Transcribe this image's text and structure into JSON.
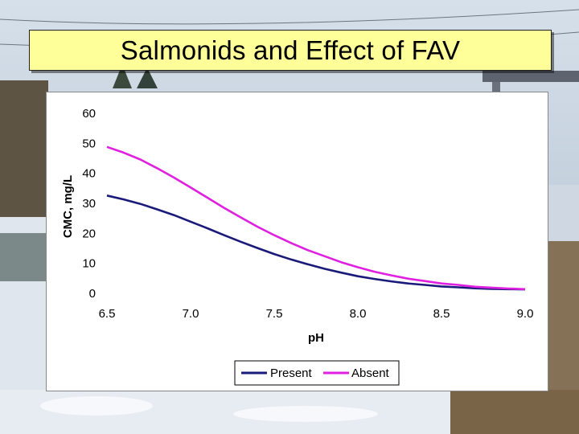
{
  "slide": {
    "title": "Salmonids and Effect of FAV"
  },
  "chart_data": {
    "type": "line",
    "xlabel": "pH",
    "ylabel": "CMC, mg/L",
    "xlim": [
      6.5,
      9.0
    ],
    "ylim": [
      0,
      60
    ],
    "x_ticks": [
      "6.5",
      "7.0",
      "7.5",
      "8.0",
      "8.5",
      "9.0"
    ],
    "y_ticks": [
      "0",
      "10",
      "20",
      "30",
      "40",
      "50",
      "60"
    ],
    "grid": false,
    "legend_position": "bottom",
    "series": [
      {
        "name": "Present",
        "color": "#1a1a7a",
        "x": [
          6.5,
          6.6,
          6.7,
          6.8,
          6.9,
          7.0,
          7.1,
          7.2,
          7.3,
          7.4,
          7.5,
          7.6,
          7.7,
          7.8,
          7.9,
          8.0,
          8.1,
          8.2,
          8.3,
          8.4,
          8.5,
          8.6,
          8.7,
          8.8,
          8.9,
          9.0
        ],
        "y": [
          32.6,
          31.3,
          29.8,
          28.0,
          26.1,
          23.9,
          21.7,
          19.4,
          17.2,
          15.1,
          13.1,
          11.3,
          9.7,
          8.2,
          6.9,
          5.7,
          4.8,
          4.0,
          3.3,
          2.8,
          2.3,
          2.0,
          1.7,
          1.5,
          1.4,
          1.3
        ]
      },
      {
        "name": "Absent",
        "color": "#e020e0",
        "x": [
          6.5,
          6.6,
          6.7,
          6.8,
          6.9,
          7.0,
          7.1,
          7.2,
          7.3,
          7.4,
          7.5,
          7.6,
          7.7,
          7.8,
          7.9,
          8.0,
          8.1,
          8.2,
          8.3,
          8.4,
          8.5,
          8.6,
          8.7,
          8.8,
          8.9,
          9.0
        ],
        "y": [
          48.8,
          46.9,
          44.6,
          41.7,
          38.6,
          35.3,
          31.9,
          28.5,
          25.3,
          22.2,
          19.4,
          16.8,
          14.4,
          12.4,
          10.4,
          8.7,
          7.2,
          6.0,
          4.9,
          4.1,
          3.3,
          2.8,
          2.2,
          1.9,
          1.6,
          1.4
        ]
      }
    ]
  },
  "background": {
    "sky_color": "#c7d3e2",
    "snow_color": "#eef2f7",
    "water_color": "#6f7d7b",
    "bank_color": "#6b5a44"
  }
}
